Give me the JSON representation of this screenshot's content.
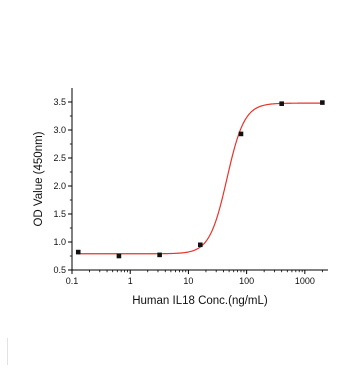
{
  "chart_data": {
    "type": "scatter",
    "title": "",
    "xlabel": "Human IL18 Conc.(ng/mL)",
    "ylabel": "OD Value (450nm)",
    "x_scale": "log",
    "xlim": [
      0.1,
      2500
    ],
    "ylim": [
      0.5,
      3.75
    ],
    "x_ticks": [
      0.1,
      1,
      10,
      100,
      1000
    ],
    "x_tick_labels": [
      "0.1",
      "1",
      "10",
      "100",
      "1000"
    ],
    "y_ticks": [
      0.5,
      1.0,
      1.5,
      2.0,
      2.5,
      3.0,
      3.5
    ],
    "y_tick_labels": [
      "0.5",
      "1.0",
      "1.5",
      "2.0",
      "2.5",
      "3.0",
      "3.5"
    ],
    "grid": false,
    "series": [
      {
        "x": [
          0.128,
          0.64,
          3.2,
          16,
          80,
          400,
          2000
        ],
        "y": [
          0.82,
          0.75,
          0.77,
          0.95,
          2.93,
          3.47,
          3.49
        ]
      }
    ],
    "fit_curve": {
      "model": "4PL",
      "bottom": 0.79,
      "top": 3.48,
      "ec50": 46,
      "hill": 2.9
    },
    "colors": {
      "marker": "#111111",
      "fit_line": "#e8332a",
      "axis": "#000000"
    }
  }
}
